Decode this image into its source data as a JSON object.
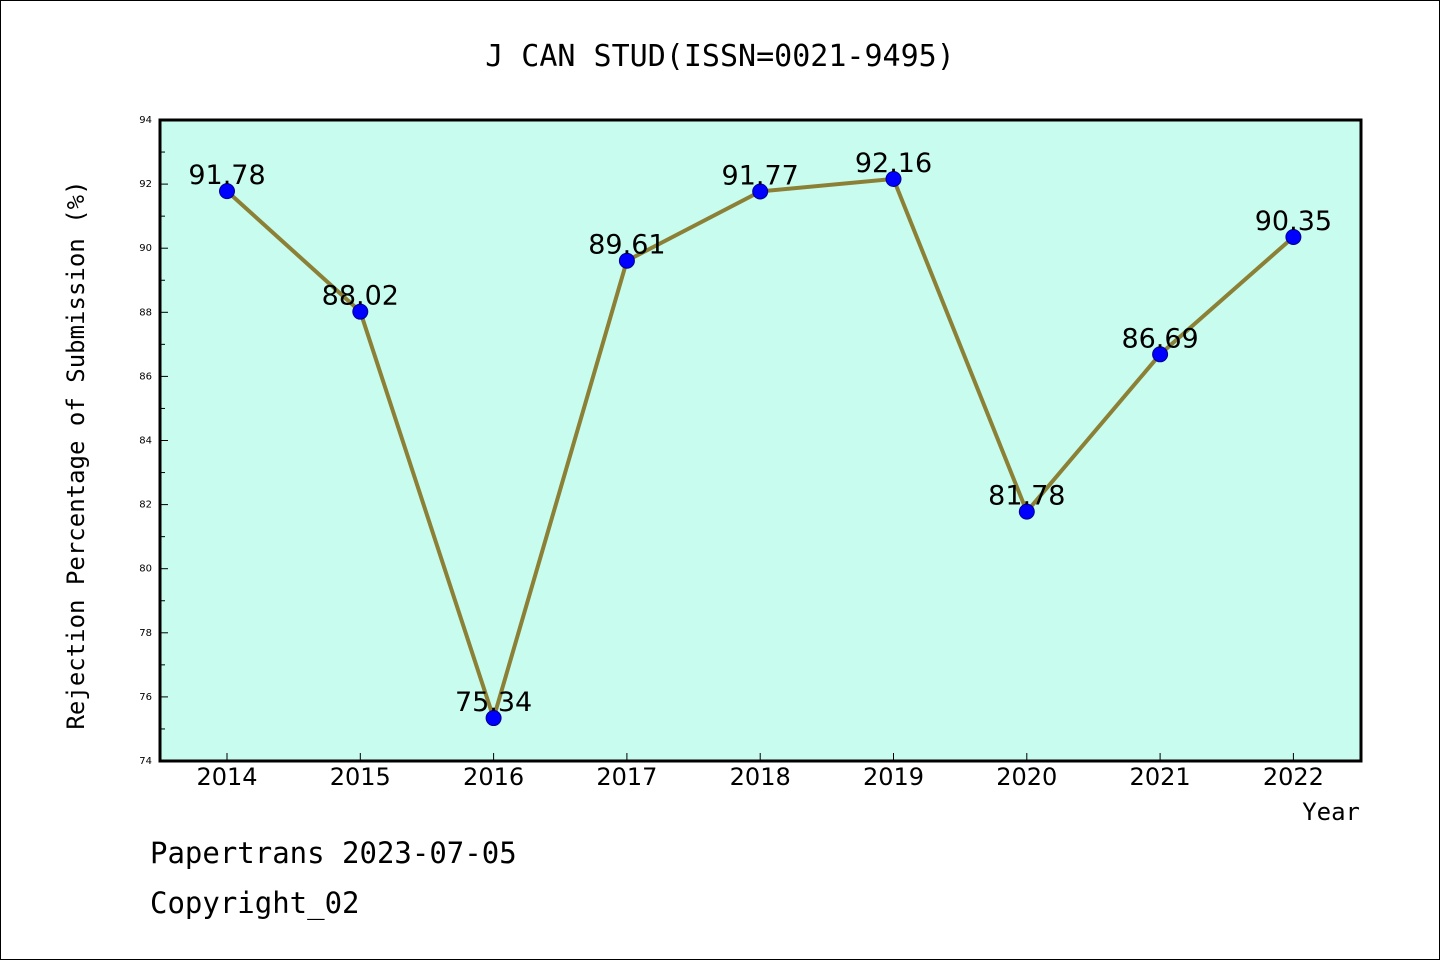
{
  "chart_data": {
    "type": "line",
    "title": "J CAN STUD(ISSN=0021-9495)",
    "xlabel": "Year",
    "ylabel": "Rejection Percentage of Submission (%)",
    "categories": [
      "2014",
      "2015",
      "2016",
      "2017",
      "2018",
      "2019",
      "2020",
      "2021",
      "2022"
    ],
    "values": [
      91.78,
      88.02,
      75.34,
      89.61,
      91.77,
      92.16,
      81.78,
      86.69,
      90.35
    ],
    "data_labels": [
      "91.78",
      "88.02",
      "75.34",
      "89.61",
      "91.77",
      "92.16",
      "81.78",
      "86.69",
      "90.35"
    ],
    "yticks": [
      "74",
      "76",
      "78",
      "80",
      "82",
      "84",
      "86",
      "88",
      "90",
      "92",
      "94"
    ],
    "ylim": [
      74,
      94
    ],
    "grid": false,
    "legend": "none",
    "colors": {
      "plot_background": "#c8fcee",
      "line": "#8b8035",
      "marker": "#0000ff"
    }
  },
  "footer": {
    "line1": "Papertrans 2023-07-05",
    "line2": "Copyright_02"
  }
}
